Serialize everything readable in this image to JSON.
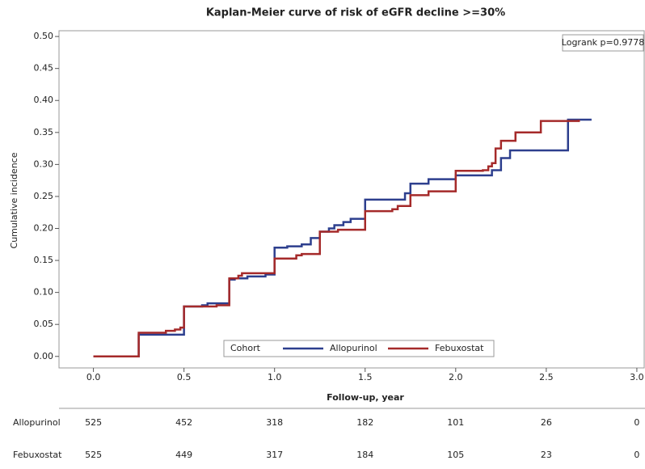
{
  "chart_data": {
    "type": "step",
    "title": "Kaplan-Meier curve of risk of eGFR decline >=30%",
    "ylabel": "Cumulative incidence",
    "xlabel": "Follow-up, year",
    "annotation": "Logrank p=0.9778",
    "legend_title": "Cohort",
    "xlim": [
      -0.19,
      3.045
    ],
    "ylim": [
      -0.018,
      0.509
    ],
    "xticks": [
      {
        "value": 0,
        "label": "0.0"
      },
      {
        "value": 0.5,
        "label": "0.5"
      },
      {
        "value": 1,
        "label": "1.0"
      },
      {
        "value": 1.5,
        "label": "1.5"
      },
      {
        "value": 2,
        "label": "2.0"
      },
      {
        "value": 2.5,
        "label": "2.5"
      },
      {
        "value": 3,
        "label": "3.0"
      }
    ],
    "yticks": [
      {
        "value": 0,
        "label": "0.00"
      },
      {
        "value": 0.05,
        "label": "0.05"
      },
      {
        "value": 0.1,
        "label": "0.10"
      },
      {
        "value": 0.15,
        "label": "0.15"
      },
      {
        "value": 0.2,
        "label": "0.20"
      },
      {
        "value": 0.25,
        "label": "0.25"
      },
      {
        "value": 0.3,
        "label": "0.30"
      },
      {
        "value": 0.35,
        "label": "0.35"
      },
      {
        "value": 0.4,
        "label": "0.40"
      },
      {
        "value": 0.45,
        "label": "0.45"
      },
      {
        "value": 0.5,
        "label": "0.50"
      }
    ],
    "series": [
      {
        "name": "Allopurinol",
        "color": "#2d3f8e",
        "x": [
          0,
          0.25,
          0.5,
          0.6,
          0.63,
          0.75,
          0.78,
          0.85,
          0.95,
          1.0,
          1.07,
          1.15,
          1.2,
          1.25,
          1.3,
          1.33,
          1.38,
          1.42,
          1.5,
          1.72,
          1.75,
          1.85,
          2.0,
          2.2,
          2.25,
          2.3,
          2.62,
          2.75
        ],
        "values": [
          0,
          0.034,
          0.078,
          0.08,
          0.083,
          0.12,
          0.122,
          0.125,
          0.128,
          0.17,
          0.172,
          0.175,
          0.185,
          0.195,
          0.2,
          0.205,
          0.21,
          0.215,
          0.245,
          0.255,
          0.27,
          0.277,
          0.283,
          0.291,
          0.31,
          0.322,
          0.37,
          0.37
        ]
      },
      {
        "name": "Febuxostat",
        "color": "#a52a2a",
        "x": [
          0,
          0.25,
          0.4,
          0.45,
          0.48,
          0.5,
          0.68,
          0.75,
          0.8,
          0.82,
          1.0,
          1.12,
          1.15,
          1.25,
          1.35,
          1.5,
          1.65,
          1.68,
          1.75,
          1.85,
          2.0,
          2.15,
          2.18,
          2.2,
          2.22,
          2.25,
          2.33,
          2.47,
          2.68
        ],
        "values": [
          0,
          0.037,
          0.04,
          0.042,
          0.045,
          0.078,
          0.08,
          0.122,
          0.126,
          0.13,
          0.153,
          0.158,
          0.16,
          0.195,
          0.198,
          0.227,
          0.23,
          0.235,
          0.252,
          0.258,
          0.29,
          0.291,
          0.297,
          0.302,
          0.325,
          0.337,
          0.35,
          0.368,
          0.37
        ]
      }
    ],
    "risk_table": {
      "rows": [
        {
          "name": "Allopurinol",
          "values": [
            525,
            452,
            318,
            182,
            101,
            26,
            0
          ]
        },
        {
          "name": "Febuxostat",
          "values": [
            525,
            449,
            317,
            184,
            105,
            23,
            0
          ]
        }
      ]
    }
  }
}
